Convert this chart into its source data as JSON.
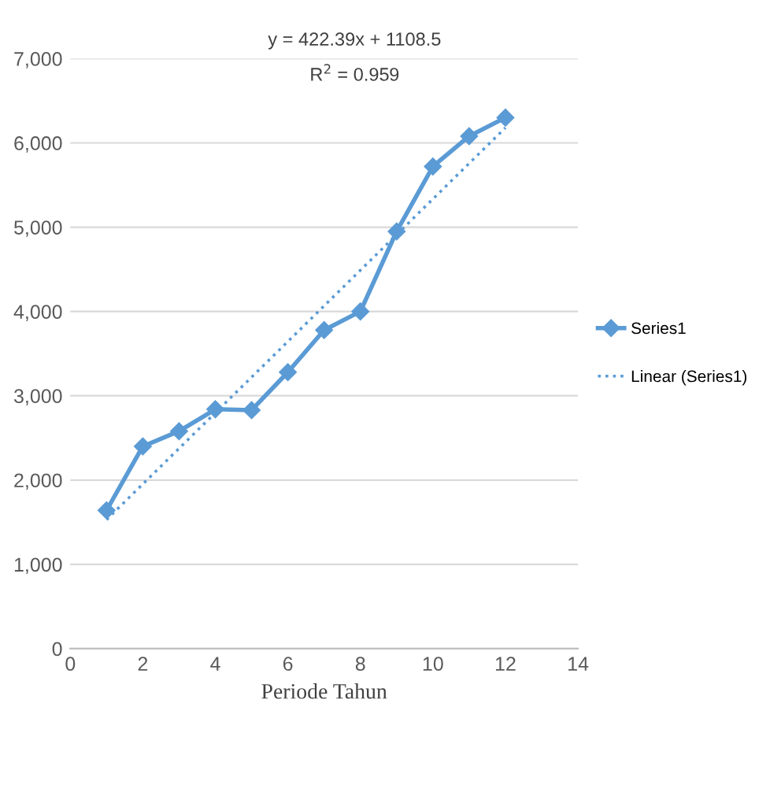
{
  "chart_data": {
    "type": "line",
    "xlabel": "Periode Tahun",
    "x": [
      1,
      2,
      3,
      4,
      5,
      6,
      7,
      8,
      9,
      10,
      11,
      12
    ],
    "series": [
      {
        "name": "Series1",
        "color": "#5b9bd5",
        "marker": "diamond",
        "line_style": "solid",
        "values": [
          1640,
          2400,
          2580,
          2840,
          2830,
          3280,
          3780,
          4000,
          4950,
          5720,
          6080,
          6300
        ]
      },
      {
        "name": "Linear (Series1)",
        "color": "#5b9bd5",
        "marker": "none",
        "line_style": "dotted",
        "x": [
          1,
          12
        ],
        "values": [
          1530,
          6180
        ]
      }
    ],
    "annotations": [
      "y = 422.39x + 1108.5",
      "R$^{2}$ = 0.959"
    ],
    "xlim": [
      0,
      14
    ],
    "xticks": [
      0,
      2,
      4,
      6,
      8,
      10,
      12,
      14
    ],
    "ylim": [
      0,
      7000
    ],
    "yticks": [
      {
        "value": 0,
        "label": "0"
      },
      {
        "value": 1000,
        "label": "1,000"
      },
      {
        "value": 2000,
        "label": "2,000"
      },
      {
        "value": 3000,
        "label": "3,000"
      },
      {
        "value": 4000,
        "label": "4,000"
      },
      {
        "value": 5000,
        "label": "5,000"
      },
      {
        "value": 6000,
        "label": "6,000"
      },
      {
        "value": 7000,
        "label": "7,000"
      }
    ],
    "grid": "y",
    "legend": "right"
  }
}
